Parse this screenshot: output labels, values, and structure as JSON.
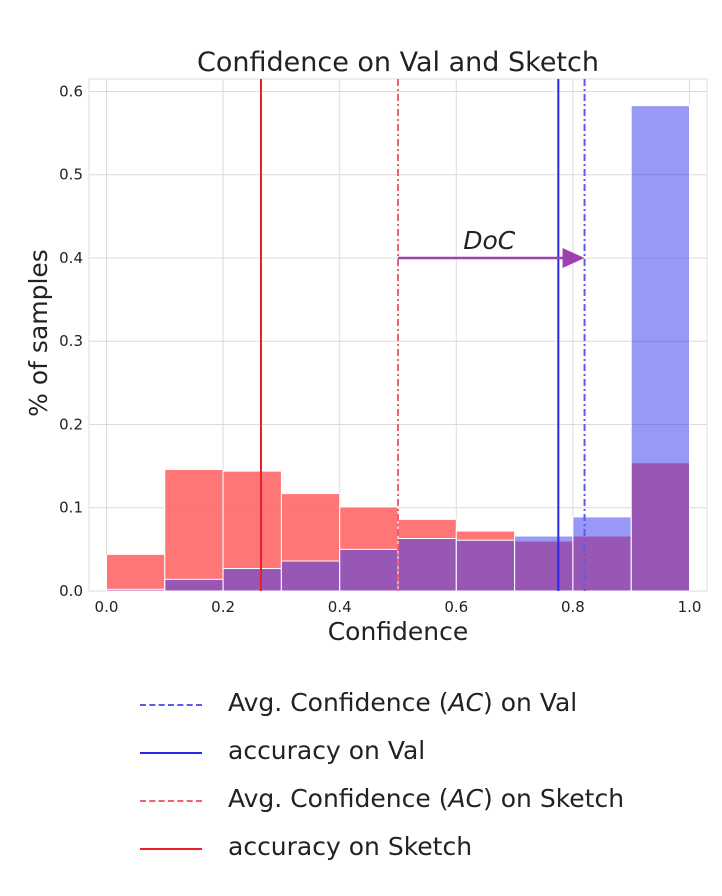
{
  "chart_data": {
    "type": "bar",
    "title": "Confidence on Val and Sketch",
    "xlabel": "Confidence",
    "ylabel": "% of samples",
    "xlim": [
      -0.03,
      1.03
    ],
    "ylim": [
      0,
      0.615
    ],
    "xticks": [
      "0.0",
      "0.2",
      "0.4",
      "0.6",
      "0.8",
      "1.0"
    ],
    "yticks": [
      "0.0",
      "0.1",
      "0.2",
      "0.3",
      "0.4",
      "0.5",
      "0.6"
    ],
    "grid": true,
    "bin_edges": [
      0.0,
      0.1,
      0.2,
      0.3,
      0.4,
      0.5,
      0.6,
      0.7,
      0.8,
      0.9,
      1.0
    ],
    "series": [
      {
        "name": "Val",
        "color": "#3a3af0",
        "values": [
          0.002,
          0.014,
          0.027,
          0.036,
          0.05,
          0.063,
          0.061,
          0.066,
          0.089,
          0.583
        ]
      },
      {
        "name": "Sketch",
        "color": "#ff6f6f",
        "values": [
          0.044,
          0.146,
          0.144,
          0.117,
          0.101,
          0.086,
          0.072,
          0.06,
          0.066,
          0.154
        ]
      }
    ],
    "vlines": [
      {
        "series": "Val",
        "kind": "avg_confidence",
        "x": 0.82,
        "style": "dashdot",
        "color": "#5a5af0"
      },
      {
        "series": "Val",
        "kind": "accuracy",
        "x": 0.775,
        "style": "solid",
        "color": "#2828e8"
      },
      {
        "series": "Sketch",
        "kind": "avg_confidence",
        "x": 0.5,
        "style": "dashdot",
        "color": "#f06070"
      },
      {
        "series": "Sketch",
        "kind": "accuracy",
        "x": 0.265,
        "style": "solid",
        "color": "#e8202a"
      }
    ],
    "annotation": {
      "text": "DoC",
      "x_from": 0.5,
      "x_to": 0.82,
      "y": 0.4,
      "color": "#a040b0"
    },
    "legend_placement": "bottom",
    "legend": [
      {
        "pre": "Avg. Confidence (",
        "em": "AC",
        "post": ") on Val",
        "style": "dashdot",
        "color": "#5a5af0"
      },
      {
        "pre": "accuracy on Val",
        "em": "",
        "post": "",
        "style": "solid",
        "color": "#2828e8"
      },
      {
        "pre": "Avg. Confidence (",
        "em": "AC",
        "post": ")  on Sketch",
        "style": "dashdot",
        "color": "#f06070"
      },
      {
        "pre": "accuracy on Sketch",
        "em": "",
        "post": "",
        "style": "solid",
        "color": "#e8202a"
      }
    ]
  }
}
